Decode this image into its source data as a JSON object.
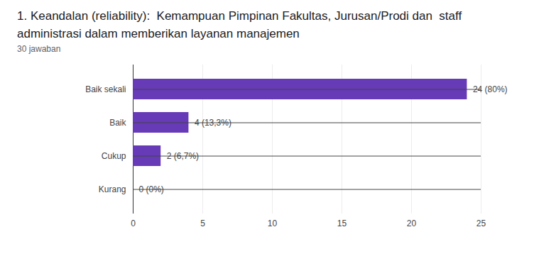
{
  "chart_data": {
    "type": "bar",
    "orientation": "horizontal",
    "title": "1. Keandalan (reliability):  Kemampuan Pimpinan Fakultas, Jurusan/Prodi dan  staff administrasi dalam memberikan layanan manajemen",
    "subtitle": "30 jawaban",
    "categories": [
      "Baik sekali",
      "Baik",
      "Cukup",
      "Kurang"
    ],
    "values": [
      24,
      4,
      2,
      0
    ],
    "value_labels": [
      "24 (80%)",
      "4 (13,3%)",
      "2 (6,7%)",
      "0 (0%)"
    ],
    "data_labels": true,
    "color": "#673ab7",
    "xlim": [
      0,
      25
    ],
    "xticks": [
      0,
      5,
      10,
      15,
      20,
      25
    ],
    "grid": true
  }
}
